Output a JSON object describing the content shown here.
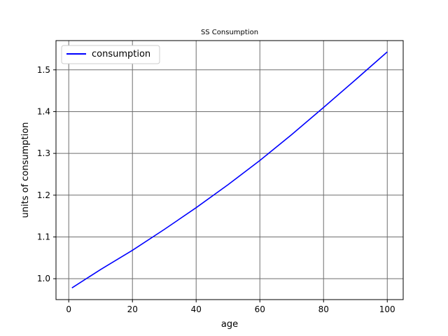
{
  "chart_data": {
    "type": "line",
    "title": "SS Consumption",
    "xlabel": "age",
    "ylabel": "units of consumption",
    "xlim": [
      -4,
      105
    ],
    "ylim": [
      0.95,
      1.57
    ],
    "xticks": [
      0,
      20,
      40,
      60,
      80,
      100
    ],
    "yticks": [
      1.0,
      1.1,
      1.2,
      1.3,
      1.4,
      1.5
    ],
    "xtick_labels": [
      "0",
      "20",
      "40",
      "60",
      "80",
      "100"
    ],
    "ytick_labels": [
      "1.0",
      "1.1",
      "1.2",
      "1.3",
      "1.4",
      "1.5"
    ],
    "grid": true,
    "legend_position": "top-left",
    "series": [
      {
        "name": "consumption",
        "color": "#0000ff",
        "x": [
          1,
          10,
          20,
          30,
          40,
          50,
          60,
          70,
          80,
          90,
          100
        ],
        "y": [
          0.978,
          1.022,
          1.068,
          1.118,
          1.17,
          1.225,
          1.283,
          1.345,
          1.41,
          1.476,
          1.543
        ]
      }
    ]
  }
}
